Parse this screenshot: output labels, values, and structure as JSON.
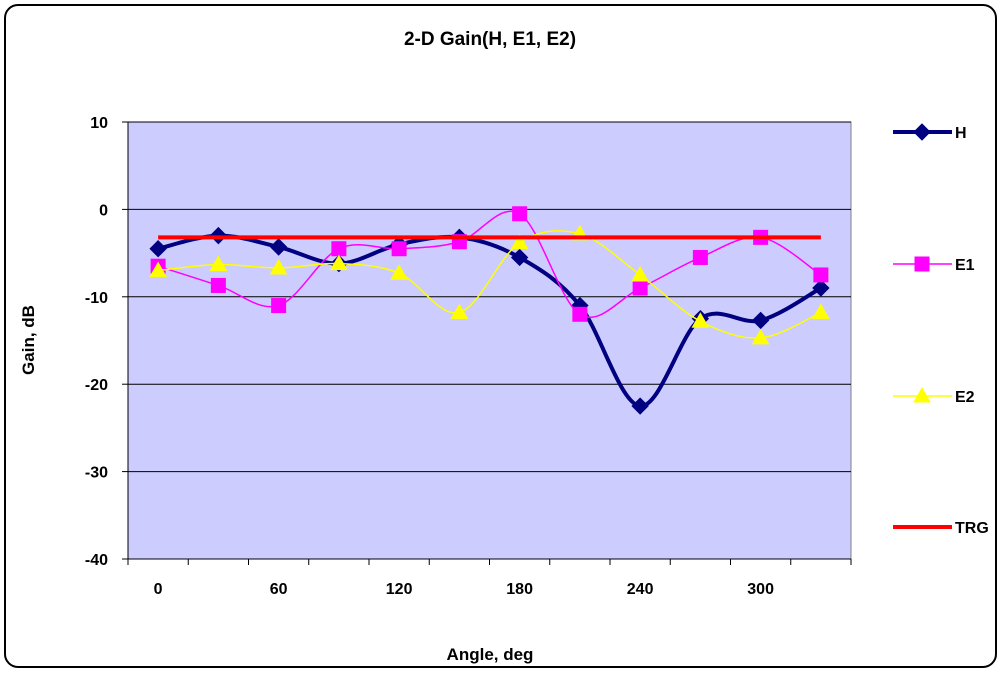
{
  "chart_data": {
    "type": "line",
    "title": "2-D Gain(H, E1, E2)",
    "xlabel": "Angle, deg",
    "ylabel": "Gain, dB",
    "xlim": [
      -15,
      345
    ],
    "ylim": [
      -40,
      10
    ],
    "x_ticks": [
      0,
      60,
      120,
      180,
      240,
      300
    ],
    "y_ticks": [
      10,
      0,
      -10,
      -20,
      -30,
      -40
    ],
    "grid": "horizontal",
    "legend_position": "right",
    "background": "#ccccff",
    "x": [
      0,
      30,
      60,
      90,
      120,
      150,
      180,
      210,
      240,
      270,
      300,
      330
    ],
    "series": [
      {
        "name": "H",
        "color": "#000080",
        "marker": "diamond",
        "values": [
          -4.5,
          -3.0,
          -4.3,
          -6.2,
          -4.0,
          -3.2,
          -5.5,
          -11.0,
          -22.5,
          -12.5,
          -12.7,
          -9.0
        ]
      },
      {
        "name": "E1",
        "color": "#ff00ff",
        "marker": "square",
        "values": [
          -6.5,
          -8.7,
          -11.0,
          -4.5,
          -4.5,
          -3.7,
          -0.5,
          -12.0,
          -9.0,
          -5.5,
          -3.2,
          -7.5
        ]
      },
      {
        "name": "E2",
        "color": "#ffff00",
        "marker": "triangle",
        "values": [
          -7.0,
          -6.3,
          -6.7,
          -6.2,
          -7.3,
          -11.8,
          -3.8,
          -2.8,
          -7.5,
          -12.8,
          -14.7,
          -11.8
        ]
      },
      {
        "name": "TRG",
        "color": "#ff0000",
        "marker": "none",
        "values": [
          -3.2,
          -3.2,
          -3.2,
          -3.2,
          -3.2,
          -3.2,
          -3.2,
          -3.2,
          -3.2,
          -3.2,
          -3.2,
          -3.2
        ]
      }
    ]
  }
}
